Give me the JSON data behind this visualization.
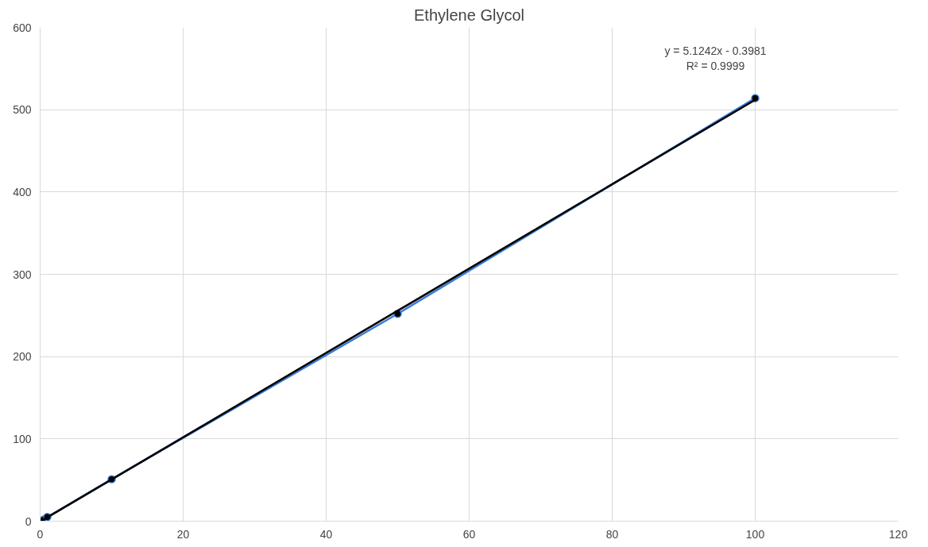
{
  "chart_data": {
    "type": "scatter",
    "title": "Ethylene Glycol",
    "x": [
      0.5,
      1,
      10,
      50,
      100
    ],
    "series": [
      {
        "type": "line",
        "color": "#3a7bd5",
        "marker": "circle",
        "values": [
          2,
          5,
          51,
          252,
          514
        ]
      },
      {
        "type": "line",
        "color": "#000000",
        "marker": "none",
        "x": [
          0.5,
          100
        ],
        "values": [
          2,
          512
        ]
      }
    ],
    "xlim": [
      0,
      120
    ],
    "xticks": [
      0,
      20,
      40,
      60,
      80,
      100,
      120
    ],
    "ylim": [
      0,
      600
    ],
    "yticks": [
      0,
      100,
      200,
      300,
      400,
      500,
      600
    ],
    "grid": true,
    "annotations": [
      "y = 5.1242x - 0.3981\nR² = 0.9999"
    ]
  }
}
